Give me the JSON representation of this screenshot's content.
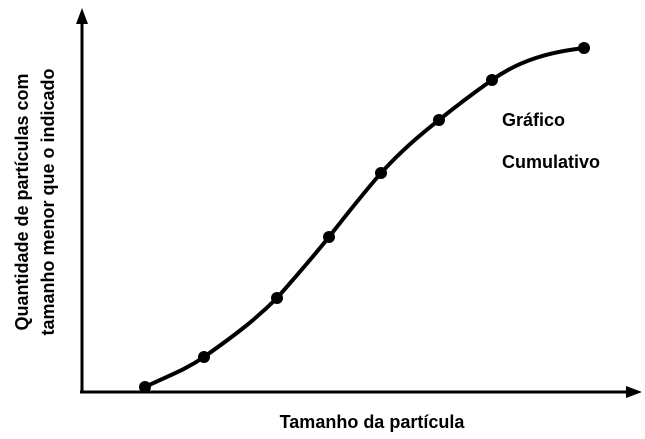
{
  "y_axis_label": [
    "Quantidade de partículas com",
    "tamanho menor que o indicado"
  ],
  "x_axis_label": "Tamanho da partícula",
  "annotation": [
    "Gráfico",
    "Cumulativo"
  ]
}
